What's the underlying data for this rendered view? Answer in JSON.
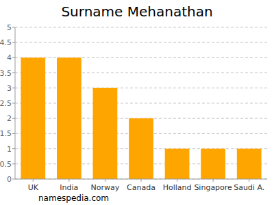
{
  "chart_data": {
    "type": "bar",
    "title": "Surname Mehanathan",
    "categories": [
      "UK",
      "India",
      "Norway",
      "Canada",
      "Holland",
      "Singapore",
      "Saudi A."
    ],
    "values": [
      4,
      4,
      3,
      2,
      1,
      1,
      1
    ],
    "color": "#ffa500",
    "ylim": [
      0,
      5
    ],
    "yticks": [
      0,
      0.5,
      1,
      1.5,
      2,
      2.5,
      3,
      3.5,
      4,
      4.5,
      5
    ],
    "grid": true,
    "annotations": [
      "namespedia.com"
    ]
  }
}
